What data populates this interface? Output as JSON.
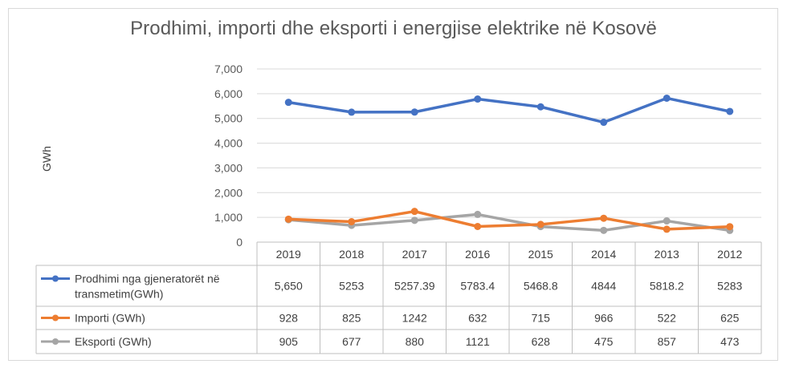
{
  "chart_data": {
    "type": "line",
    "title": "Prodhimi, importi dhe eksporti i energjise elektrike në Kosovë",
    "ylabel": "GWh",
    "xlabel": "",
    "ylim": [
      0,
      7000
    ],
    "y_ticks": [
      0,
      1000,
      2000,
      3000,
      4000,
      5000,
      6000,
      7000
    ],
    "y_tick_labels": [
      "0",
      "1,000",
      "2,000",
      "3,000",
      "4,000",
      "5,000",
      "6,000",
      "7,000"
    ],
    "grid": true,
    "categories": [
      "2019",
      "2018",
      "2017",
      "2016",
      "2015",
      "2014",
      "2013",
      "2012"
    ],
    "series": [
      {
        "name": "Prodhimi nga gjeneratorët në transmetim(GWh)",
        "name_lines": [
          "Prodhimi nga gjeneratorët në",
          "transmetim(GWh)"
        ],
        "color": "#4472c4",
        "values": [
          5650,
          5253,
          5257.39,
          5783.4,
          5468.8,
          4844,
          5818.2,
          5283
        ],
        "labels": [
          "5,650",
          "5253",
          "5257.39",
          "5783.4",
          "5468.8",
          "4844",
          "5818.2",
          "5283"
        ]
      },
      {
        "name": "Importi (GWh)",
        "name_lines": [
          "Importi (GWh)"
        ],
        "color": "#ed7d31",
        "values": [
          928,
          825,
          1242,
          632,
          715,
          966,
          522,
          625
        ],
        "labels": [
          "928",
          "825",
          "1242",
          "632",
          "715",
          "966",
          "522",
          "625"
        ]
      },
      {
        "name": "Eksporti (GWh)",
        "name_lines": [
          "Eksporti (GWh)"
        ],
        "color": "#a5a5a5",
        "values": [
          905,
          677,
          880,
          1121,
          628,
          475,
          857,
          473
        ],
        "labels": [
          "905",
          "677",
          "880",
          "1121",
          "628",
          "475",
          "857",
          "473"
        ]
      }
    ]
  }
}
